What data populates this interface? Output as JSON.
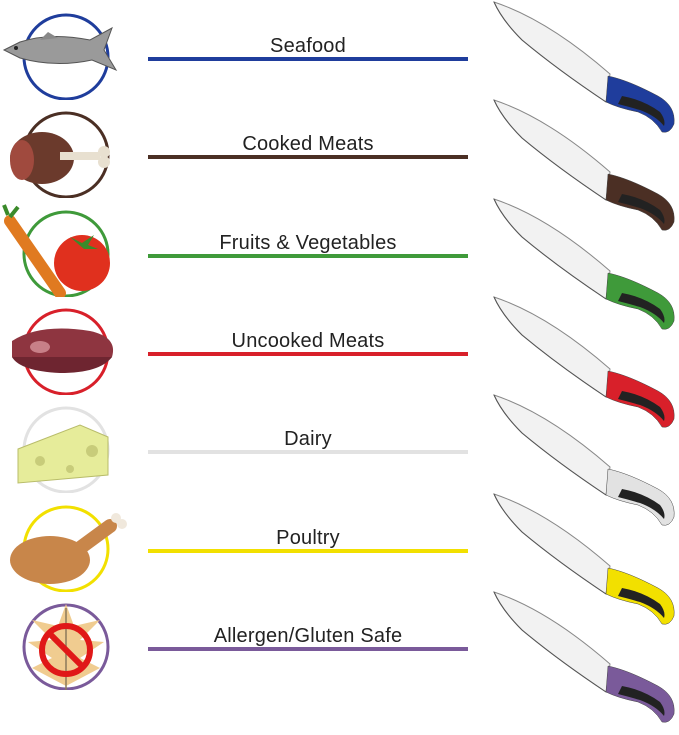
{
  "categories": [
    {
      "label": "Seafood",
      "color": "#1f3d9c",
      "icon": "fish-icon"
    },
    {
      "label": "Cooked Meats",
      "color": "#4b2f24",
      "icon": "ham-icon"
    },
    {
      "label": "Fruits & Vegetables",
      "color": "#3f9a3a",
      "icon": "tomato-carrot-icon"
    },
    {
      "label": "Uncooked Meats",
      "color": "#d8202a",
      "icon": "raw-steak-icon"
    },
    {
      "label": "Dairy",
      "color": "#e2e2e2",
      "icon": "cheese-icon"
    },
    {
      "label": "Poultry",
      "color": "#f2e000",
      "icon": "roast-chicken-icon"
    },
    {
      "label": "Allergen/Gluten Safe",
      "color": "#7a5a9a",
      "icon": "no-wheat-icon"
    }
  ]
}
